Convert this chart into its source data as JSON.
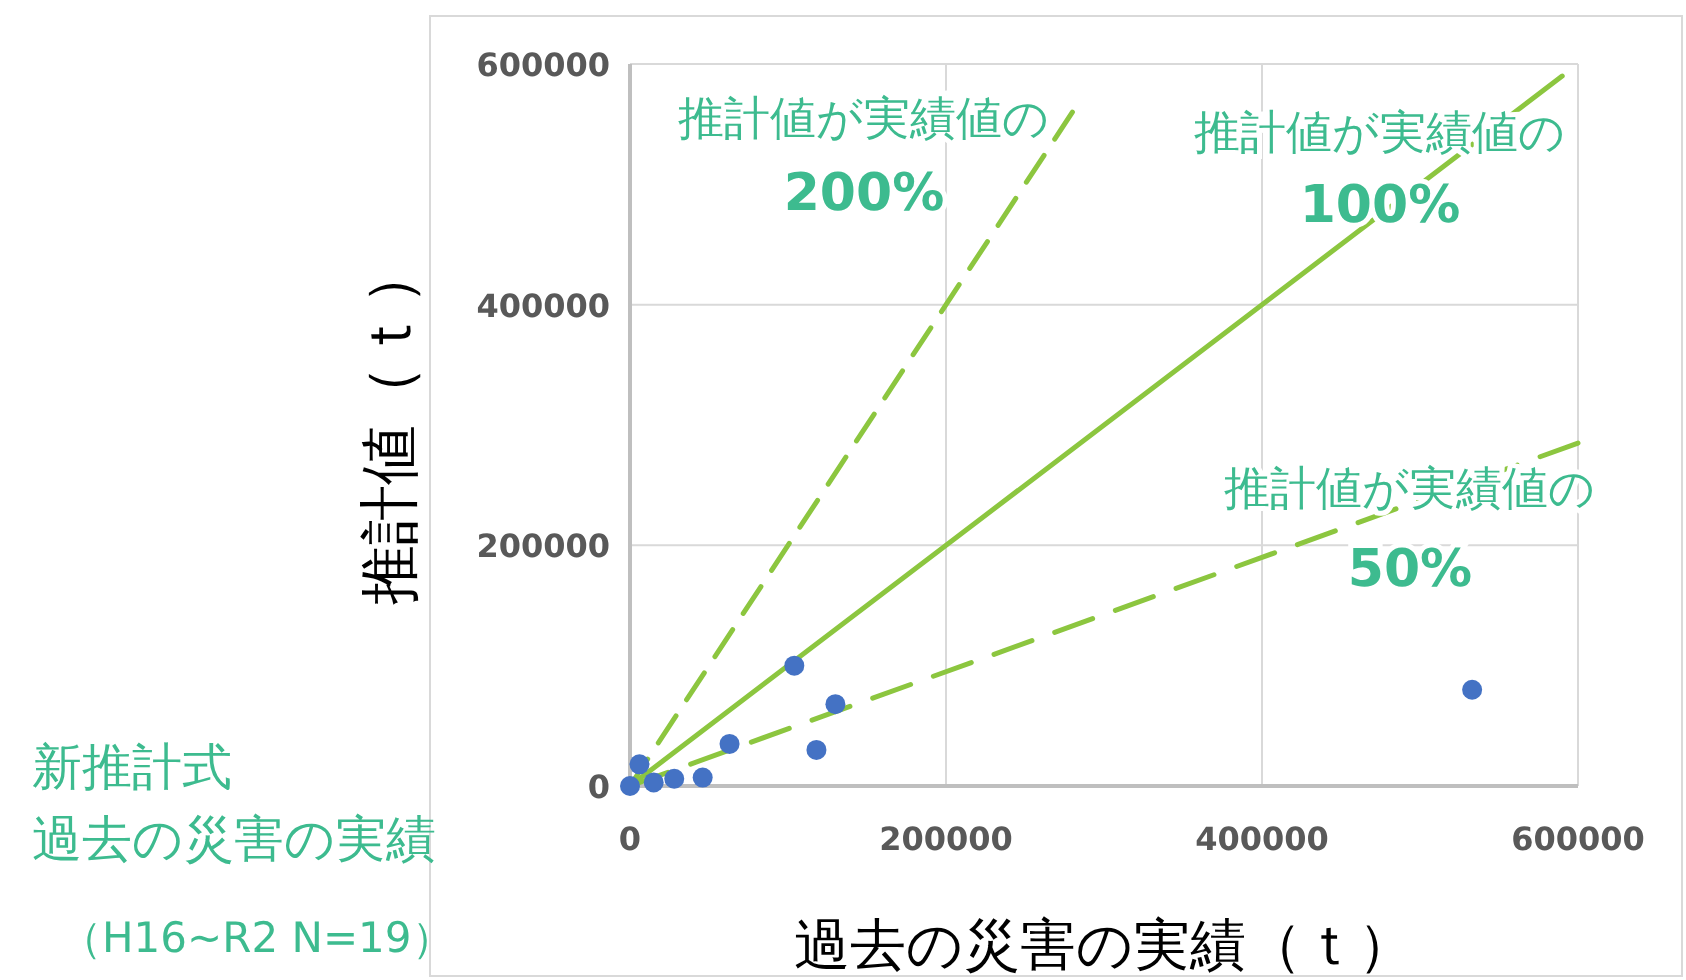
{
  "chart_data": {
    "type": "scatter",
    "xlabel": "過去の災害の実績（ｔ）",
    "ylabel": "推計値（ｔ）",
    "xlim": [
      0,
      600000
    ],
    "ylim": [
      0,
      600000
    ],
    "xticks": [
      0,
      200000,
      400000,
      600000
    ],
    "yticks": [
      0,
      200000,
      400000,
      600000
    ],
    "grid": true,
    "marker": "circle",
    "series": [
      {
        "type": "line",
        "line_style": "dashed",
        "marker": "none",
        "color": "#8cc63f",
        "x": [
          0,
          280000
        ],
        "values": [
          0,
          560000
        ]
      },
      {
        "type": "line",
        "line_style": "solid",
        "marker": "none",
        "color": "#8cc63f",
        "x": [
          0,
          590000
        ],
        "values": [
          0,
          590000
        ]
      },
      {
        "type": "line",
        "line_style": "dashed",
        "marker": "none",
        "color": "#8cc63f",
        "x": [
          0,
          600000
        ],
        "values": [
          0,
          285000
        ]
      },
      {
        "color": "#4472c4",
        "x": [
          104000,
          130000,
          63000,
          118000,
          46000,
          6000,
          0,
          15000,
          28000,
          533000
        ],
        "values": [
          100000,
          68000,
          35000,
          30000,
          7000,
          18000,
          0,
          3000,
          6000,
          80000
        ]
      }
    ],
    "annotations": [
      "推計値が実績値の",
      "200%",
      "推計値が実績値の",
      "100%",
      "推計値が実績値の",
      "50%",
      "新推計式",
      "過去の災害の実績",
      "（H16~R2 N=19）"
    ]
  }
}
